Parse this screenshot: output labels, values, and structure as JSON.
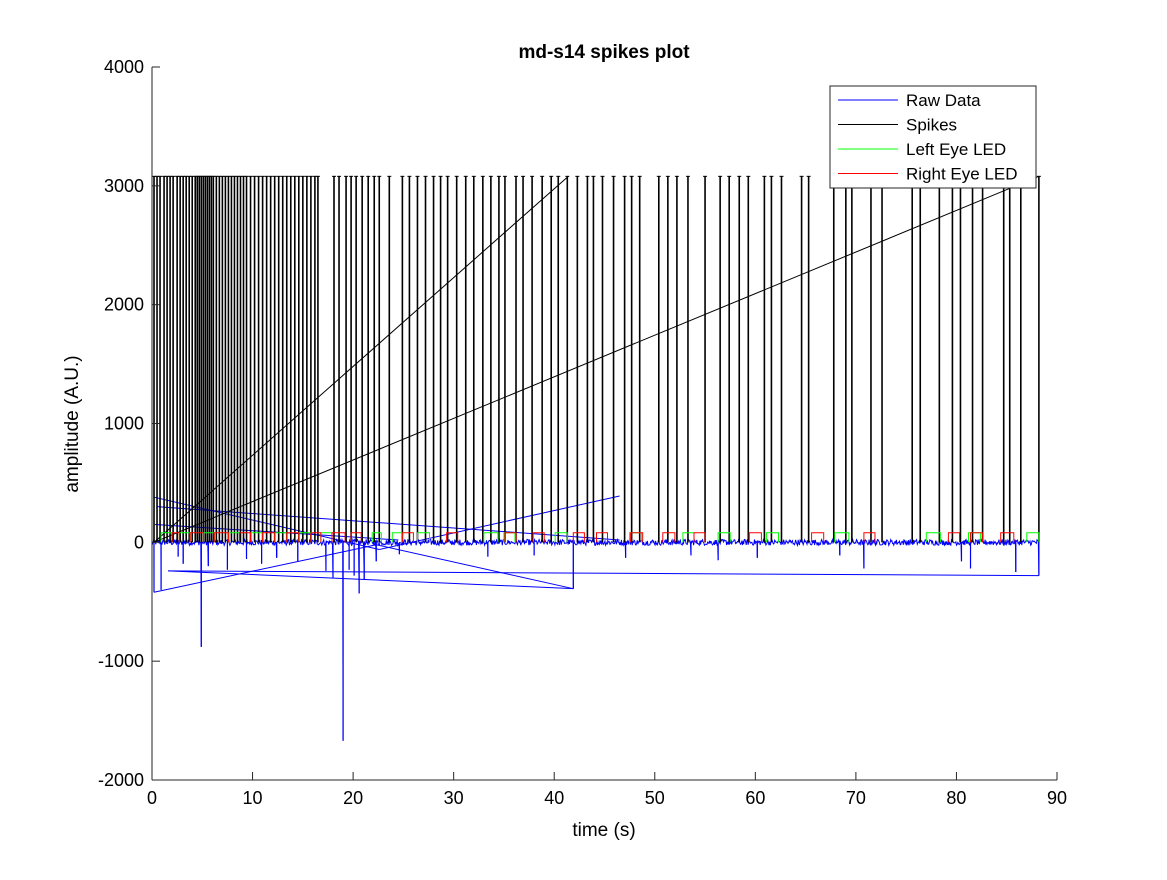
{
  "chart_data": {
    "type": "line",
    "title": "md-s14 spikes plot",
    "xlabel": "time (s)",
    "ylabel": "amplitude (A.U.)",
    "xlim": [
      0,
      90
    ],
    "ylim": [
      -2000,
      4000
    ],
    "xticks": [
      0,
      10,
      20,
      30,
      40,
      50,
      60,
      70,
      80,
      90
    ],
    "yticks": [
      -2000,
      -1000,
      0,
      1000,
      2000,
      3000,
      4000
    ],
    "xtick_labels": [
      "0",
      "10",
      "20",
      "30",
      "40",
      "50",
      "60",
      "70",
      "80",
      "90"
    ],
    "ytick_labels": [
      "-2000",
      "-1000",
      "0",
      "1000",
      "2000",
      "3000",
      "4000"
    ],
    "grid": false,
    "legend_position": "top-right",
    "series": [
      {
        "name": "Raw Data",
        "color": "#0000ff",
        "kind": "noisy-trace",
        "baseline": 0,
        "noise_amplitude": 25,
        "negative_deflections": [
          {
            "x": 0.2,
            "y": -420
          },
          {
            "x": 0.9,
            "y": -400
          },
          {
            "x": 2.6,
            "y": -120
          },
          {
            "x": 3.1,
            "y": -180
          },
          {
            "x": 4.9,
            "y": -880
          },
          {
            "x": 5.6,
            "y": -200
          },
          {
            "x": 7.5,
            "y": -230
          },
          {
            "x": 9.4,
            "y": -140
          },
          {
            "x": 10.9,
            "y": -180
          },
          {
            "x": 12.4,
            "y": -130
          },
          {
            "x": 14.5,
            "y": -160
          },
          {
            "x": 17.3,
            "y": -240
          },
          {
            "x": 18.0,
            "y": -300
          },
          {
            "x": 19.0,
            "y": -1670
          },
          {
            "x": 19.6,
            "y": -230
          },
          {
            "x": 20.1,
            "y": -280
          },
          {
            "x": 20.6,
            "y": -430
          },
          {
            "x": 21.1,
            "y": -310
          },
          {
            "x": 22.3,
            "y": -160
          },
          {
            "x": 24.6,
            "y": -100
          },
          {
            "x": 33.4,
            "y": -120
          },
          {
            "x": 38.0,
            "y": -110
          },
          {
            "x": 41.9,
            "y": -390
          },
          {
            "x": 47.1,
            "y": -130
          },
          {
            "x": 53.6,
            "y": -110
          },
          {
            "x": 56.3,
            "y": -150
          },
          {
            "x": 60.2,
            "y": -130
          },
          {
            "x": 68.4,
            "y": -110
          },
          {
            "x": 70.8,
            "y": -220
          },
          {
            "x": 80.5,
            "y": -160
          },
          {
            "x": 81.4,
            "y": -220
          },
          {
            "x": 85.9,
            "y": -250
          },
          {
            "x": 88.2,
            "y": -280
          }
        ],
        "wrap_segments": [
          {
            "x": [
              0.2,
              22.3
            ],
            "y": [
              -420,
              -20
            ]
          },
          {
            "x": [
              22.3,
              41.9
            ],
            "y": [
              -20,
              -390
            ]
          },
          {
            "x": [
              41.9,
              1.6
            ],
            "y": [
              -390,
              -240
            ]
          },
          {
            "x": [
              1.6,
              88.2
            ],
            "y": [
              -240,
              -280
            ]
          },
          {
            "x": [
              0.2,
              22.6
            ],
            "y": [
              380,
              -60
            ]
          },
          {
            "x": [
              0.3,
              24.5
            ],
            "y": [
              150,
              20
            ]
          },
          {
            "x": [
              22.6,
              46.5
            ],
            "y": [
              -60,
              390
            ]
          },
          {
            "x": [
              0.5,
              46.5
            ],
            "y": [
              300,
              20
            ]
          }
        ]
      },
      {
        "name": "Spikes",
        "color": "#000000",
        "kind": "spike-train",
        "spike_height": 3080,
        "spike_times": [
          0.2,
          0.5,
          0.8,
          1.2,
          1.5,
          1.8,
          2.1,
          2.5,
          2.8,
          3.1,
          3.4,
          3.7,
          4.0,
          4.3,
          4.5,
          4.7,
          4.9,
          5.1,
          5.3,
          5.5,
          5.7,
          5.9,
          6.1,
          6.4,
          6.7,
          7.0,
          7.3,
          7.6,
          7.9,
          8.2,
          8.5,
          8.8,
          9.1,
          9.4,
          9.8,
          10.2,
          10.6,
          11.0,
          11.4,
          11.8,
          12.2,
          12.6,
          13.0,
          13.4,
          13.8,
          14.2,
          14.6,
          15.0,
          15.4,
          15.8,
          16.2,
          16.5,
          18.1,
          18.6,
          19.3,
          19.8,
          20.3,
          20.9,
          21.5,
          22.1,
          22.6,
          23.6,
          24.9,
          25.6,
          26.4,
          27.2,
          28.0,
          28.7,
          29.4,
          30.3,
          31.2,
          32.0,
          32.9,
          33.7,
          34.5,
          35.1,
          36.2,
          36.9,
          37.8,
          38.8,
          39.7,
          40.4,
          41.3,
          42.3,
          43.3,
          43.9,
          44.8,
          45.9,
          47.0,
          47.7,
          48.5,
          50.4,
          51.3,
          52.2,
          53.3,
          55.0,
          56.5,
          57.4,
          58.4,
          59.3,
          60.9,
          61.6,
          62.6,
          64.6,
          65.3,
          67.8,
          69.0,
          69.6,
          71.5,
          72.6,
          75.6,
          76.4,
          78.3,
          79.6,
          80.4,
          81.6,
          82.6,
          84.7,
          85.3,
          86.4,
          88.2
        ],
        "wrap_segments": [
          {
            "x": [
              0.2,
              41.4
            ],
            "y": [
              0,
              3080
            ]
          },
          {
            "x": [
              0.2,
              88.2
            ],
            "y": [
              0,
              3080
            ]
          }
        ]
      },
      {
        "name": "Left Eye LED",
        "color": "#00ff00",
        "kind": "pulse-train",
        "baseline": 0,
        "pulse_height": 80,
        "pulses": [
          [
            0.9,
            2.0
          ],
          [
            2.7,
            3.8
          ],
          [
            5.1,
            6.2
          ],
          [
            7.6,
            8.7
          ],
          [
            9.8,
            11.0
          ],
          [
            12.2,
            13.4
          ],
          [
            14.6,
            15.8
          ],
          [
            16.8,
            17.9
          ],
          [
            21.9,
            22.8
          ],
          [
            23.9,
            24.9
          ],
          [
            26.4,
            27.6
          ],
          [
            33.0,
            34.4
          ],
          [
            35.0,
            36.1
          ],
          [
            40.1,
            41.3
          ],
          [
            47.5,
            48.7
          ],
          [
            52.8,
            53.9
          ],
          [
            56.3,
            57.5
          ],
          [
            61.1,
            62.3
          ],
          [
            67.9,
            69.3
          ],
          [
            77.0,
            78.4
          ],
          [
            81.2,
            82.4
          ],
          [
            87.0,
            88.2
          ]
        ]
      },
      {
        "name": "Right Eye LED",
        "color": "#ff0000",
        "kind": "pulse-train",
        "baseline": 0,
        "pulse_height": 80,
        "pulses": [
          [
            2.0,
            2.7
          ],
          [
            3.8,
            5.1
          ],
          [
            6.2,
            7.6
          ],
          [
            8.7,
            9.8
          ],
          [
            11.0,
            12.2
          ],
          [
            13.4,
            14.6
          ],
          [
            15.8,
            16.8
          ],
          [
            17.9,
            19.2
          ],
          [
            19.8,
            20.8
          ],
          [
            24.9,
            26.0
          ],
          [
            29.3,
            30.4
          ],
          [
            35.1,
            36.2
          ],
          [
            37.9,
            39.0
          ],
          [
            41.9,
            43.0
          ],
          [
            44.2,
            45.3
          ],
          [
            47.6,
            48.8
          ],
          [
            50.8,
            52.0
          ],
          [
            53.9,
            55.0
          ],
          [
            59.4,
            60.6
          ],
          [
            65.6,
            66.8
          ],
          [
            70.8,
            71.9
          ],
          [
            79.2,
            80.3
          ],
          [
            81.4,
            82.6
          ],
          [
            84.4,
            85.7
          ]
        ]
      }
    ]
  }
}
